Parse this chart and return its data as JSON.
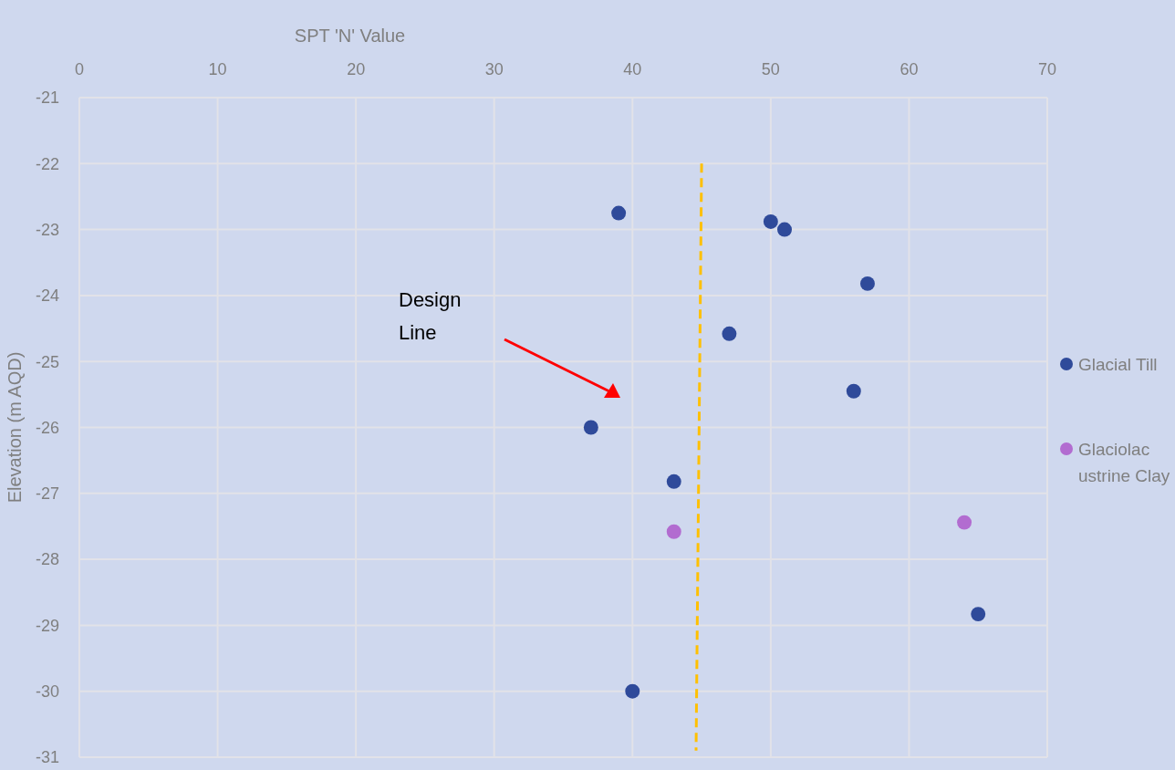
{
  "chart_data": {
    "type": "scatter",
    "xlabel": "SPT 'N' Value",
    "ylabel": "Elevation (m AQD)",
    "xlim": [
      0,
      70
    ],
    "xticks": [
      0,
      10,
      20,
      30,
      40,
      50,
      60,
      70
    ],
    "ylim": [
      -31,
      -21
    ],
    "yticks": [
      -31,
      -30,
      -29,
      -28,
      -27,
      -26,
      -25,
      -24,
      -23,
      -22,
      -21
    ],
    "grid": true,
    "legend": "right",
    "marker": "circle",
    "annotations": [
      "Design Line"
    ],
    "series": [
      {
        "name": "Glacial Till",
        "color": "#2f4a9a",
        "x": [
          39,
          50,
          51,
          57,
          47,
          56,
          37,
          43,
          65,
          40
        ],
        "values": [
          -22.75,
          -22.88,
          -23.0,
          -23.82,
          -24.58,
          -25.45,
          -26.0,
          -26.82,
          -28.83,
          -30.0
        ]
      },
      {
        "name": "Glaciolacustrine Clay",
        "color": "#b26cd0",
        "x": [
          43,
          64
        ],
        "values": [
          -27.58,
          -27.44
        ]
      },
      {
        "type": "line",
        "color": "#ffc000",
        "line_style": "dashed",
        "marker": "none",
        "x": [
          45,
          44.6
        ],
        "values": [
          -22,
          -30.9
        ]
      }
    ]
  }
}
